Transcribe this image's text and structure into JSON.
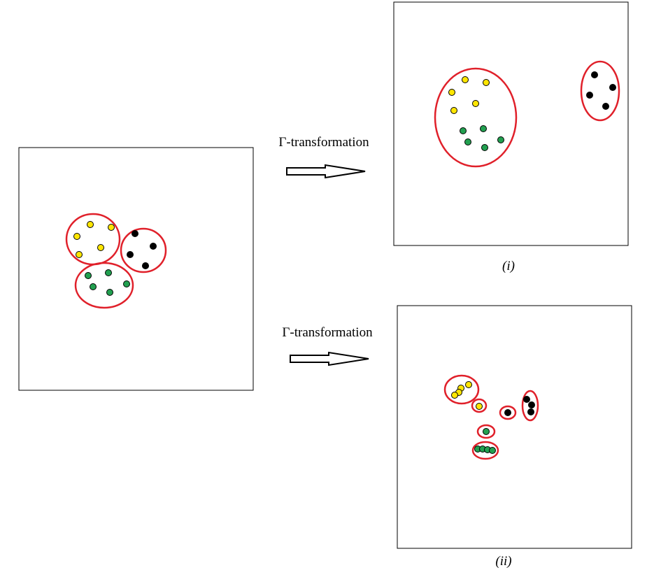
{
  "arrow_label_top": "Γ-transformation",
  "arrow_label_bottom": "Γ-transformation",
  "caption_i": "(i)",
  "caption_ii": "(ii)",
  "colors": {
    "cluster_outline": "#e0202a",
    "yellow_point": "#ffe600",
    "green_point": "#22a050",
    "black_point": "#000000",
    "frame": "#000000"
  }
}
